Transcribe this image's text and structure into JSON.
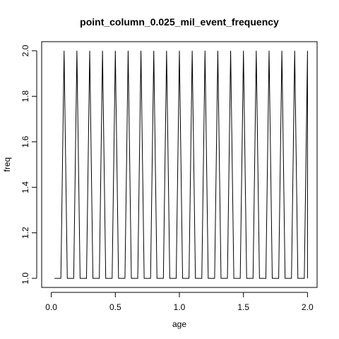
{
  "chart_data": {
    "type": "line",
    "title": "point_column_0.025_mil_event_frequency",
    "xlabel": "age",
    "ylabel": "freq",
    "xlim": [
      -0.075,
      2.075
    ],
    "ylim": [
      0.96,
      2.04
    ],
    "xticks": [
      0.0,
      0.5,
      1.0,
      1.5,
      2.0
    ],
    "xtick_labels": [
      "0.0",
      "0.5",
      "1.0",
      "1.5",
      "2.0"
    ],
    "yticks": [
      1.0,
      1.2,
      1.4,
      1.6,
      1.8,
      2.0
    ],
    "ytick_labels": [
      "1.0",
      "1.2",
      "1.4",
      "1.6",
      "1.8",
      "2.0"
    ],
    "grid": false,
    "box": true,
    "line_color": "#000000",
    "series": [
      {
        "x": [
          0.025,
          0.05,
          0.075,
          0.1,
          0.125,
          0.15,
          0.175,
          0.2,
          0.225,
          0.25,
          0.275,
          0.3,
          0.325,
          0.35,
          0.375,
          0.4,
          0.425,
          0.45,
          0.475,
          0.5,
          0.525,
          0.55,
          0.575,
          0.6,
          0.625,
          0.65,
          0.675,
          0.7,
          0.725,
          0.75,
          0.775,
          0.8,
          0.825,
          0.85,
          0.875,
          0.9,
          0.925,
          0.95,
          0.975,
          1.0,
          1.025,
          1.05,
          1.075,
          1.1,
          1.125,
          1.15,
          1.175,
          1.2,
          1.225,
          1.25,
          1.275,
          1.3,
          1.325,
          1.35,
          1.375,
          1.4,
          1.425,
          1.45,
          1.475,
          1.5,
          1.525,
          1.55,
          1.575,
          1.6,
          1.625,
          1.65,
          1.675,
          1.7,
          1.725,
          1.75,
          1.775,
          1.8,
          1.825,
          1.85,
          1.875,
          1.9,
          1.925,
          1.95,
          1.975,
          2.0,
          2.0
        ],
        "y": [
          1,
          1,
          1,
          2,
          1,
          1,
          1,
          2,
          1,
          1,
          1,
          2,
          1,
          1,
          1,
          2,
          1,
          1,
          1,
          2,
          1,
          1,
          1,
          2,
          1,
          1,
          1,
          2,
          1,
          1,
          1,
          2,
          1,
          1,
          1,
          2,
          1,
          1,
          1,
          2,
          1,
          1,
          1,
          2,
          1,
          1,
          1,
          2,
          1,
          1,
          1,
          2,
          1,
          1,
          1,
          2,
          1,
          1,
          1,
          2,
          1,
          1,
          1,
          2,
          1,
          1,
          1,
          2,
          1,
          1,
          1,
          2,
          1,
          1,
          1,
          2,
          1,
          1,
          1,
          2,
          1
        ]
      }
    ]
  }
}
